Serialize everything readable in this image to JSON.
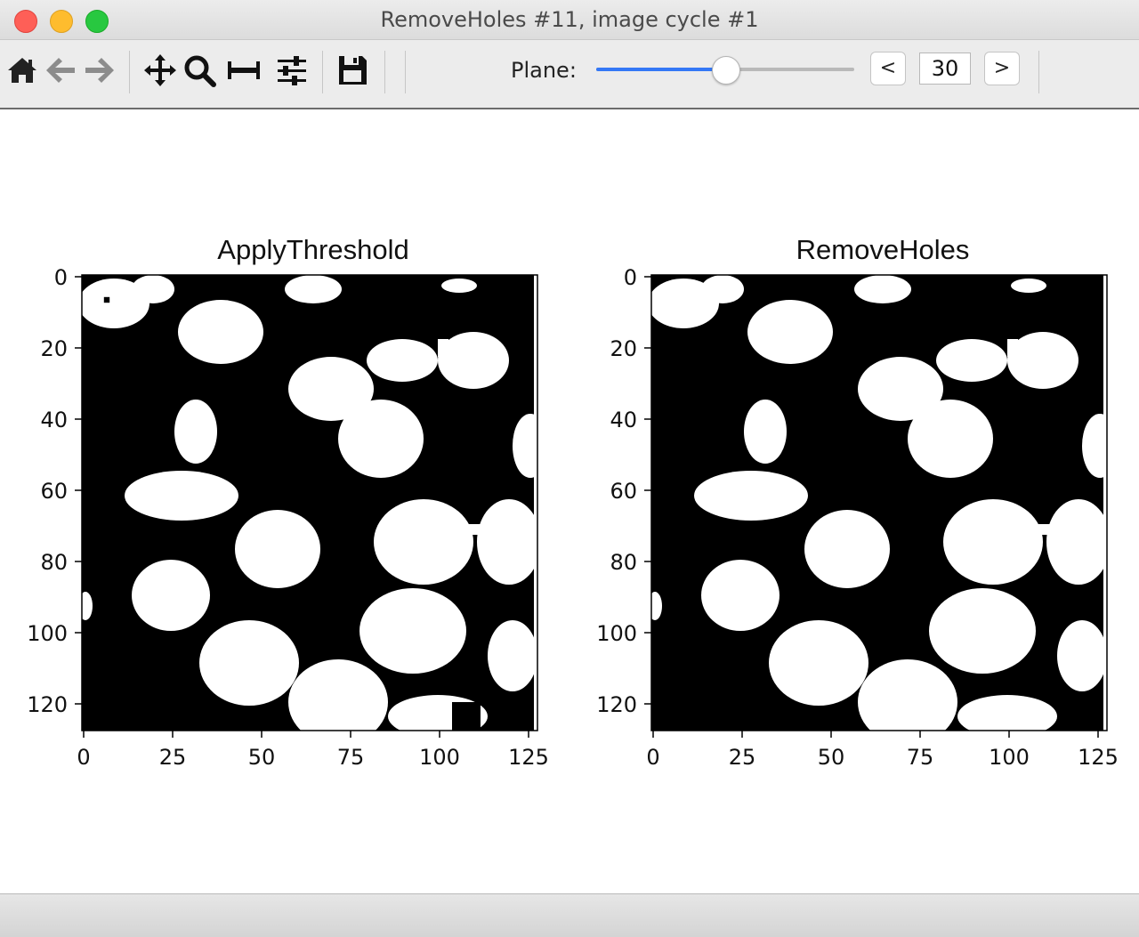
{
  "window": {
    "title": "RemoveHoles #11, image cycle #1"
  },
  "toolbar": {
    "icons": [
      "home-icon",
      "back-icon",
      "forward-icon",
      "pan-icon",
      "zoom-icon",
      "subplots-icon",
      "configure-icon",
      "save-icon"
    ],
    "plane_label": "Plane:",
    "plane_value": "30",
    "prev_label": "<",
    "next_label": ">",
    "slider_fraction": 0.5,
    "slider_accent": "#3478f6"
  },
  "panels": [
    {
      "title": "ApplyThreshold",
      "x_ticks": [
        "0",
        "25",
        "50",
        "75",
        "100",
        "125"
      ],
      "y_ticks": [
        "0",
        "20",
        "40",
        "60",
        "80",
        "100",
        "120"
      ],
      "holes": true
    },
    {
      "title": "RemoveHoles",
      "x_ticks": [
        "0",
        "25",
        "50",
        "75",
        "100",
        "125"
      ],
      "y_ticks": [
        "0",
        "20",
        "40",
        "60",
        "80",
        "100",
        "120"
      ],
      "holes": false
    }
  ]
}
